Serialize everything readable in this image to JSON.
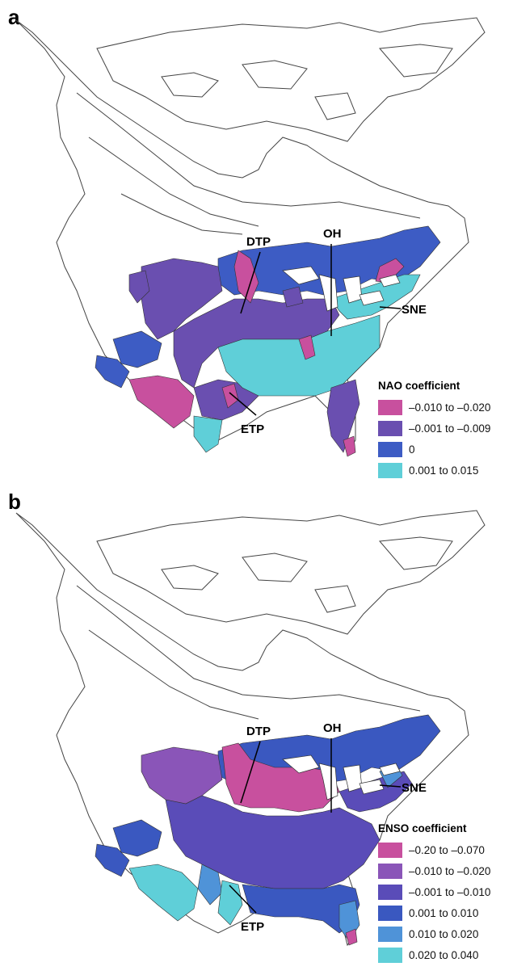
{
  "panels": [
    {
      "letter": "a",
      "legend": {
        "title": "NAO coefficient",
        "items": [
          {
            "label": "–0.010 to –0.020",
            "color": "#c8509e"
          },
          {
            "label": "–0.001 to –0.009",
            "color": "#6a4fb0"
          },
          {
            "label": "0",
            "color": "#3d5cc4"
          },
          {
            "label": "0.001 to 0.015",
            "color": "#5fcfd8"
          }
        ]
      },
      "labels": {
        "dtp": "DTP",
        "oh": "OH",
        "sne": "SNE",
        "etp": "ETP"
      }
    },
    {
      "letter": "b",
      "legend": {
        "title": "ENSO coefficient",
        "items": [
          {
            "label": "–0.20 to –0.070",
            "color": "#c8509e"
          },
          {
            "label": "–0.010 to –0.020",
            "color": "#8a55b8"
          },
          {
            "label": "–0.001 to –0.010",
            "color": "#5a4cb8"
          },
          {
            "label": "0.001 to 0.010",
            "color": "#3a58c0"
          },
          {
            "label": "0.010 to 0.020",
            "color": "#4f93d8"
          },
          {
            "label": "0.020 to 0.040",
            "color": "#5fcfd8"
          }
        ]
      },
      "labels": {
        "dtp": "DTP",
        "oh": "OH",
        "sne": "SNE",
        "etp": "ETP"
      }
    }
  ]
}
